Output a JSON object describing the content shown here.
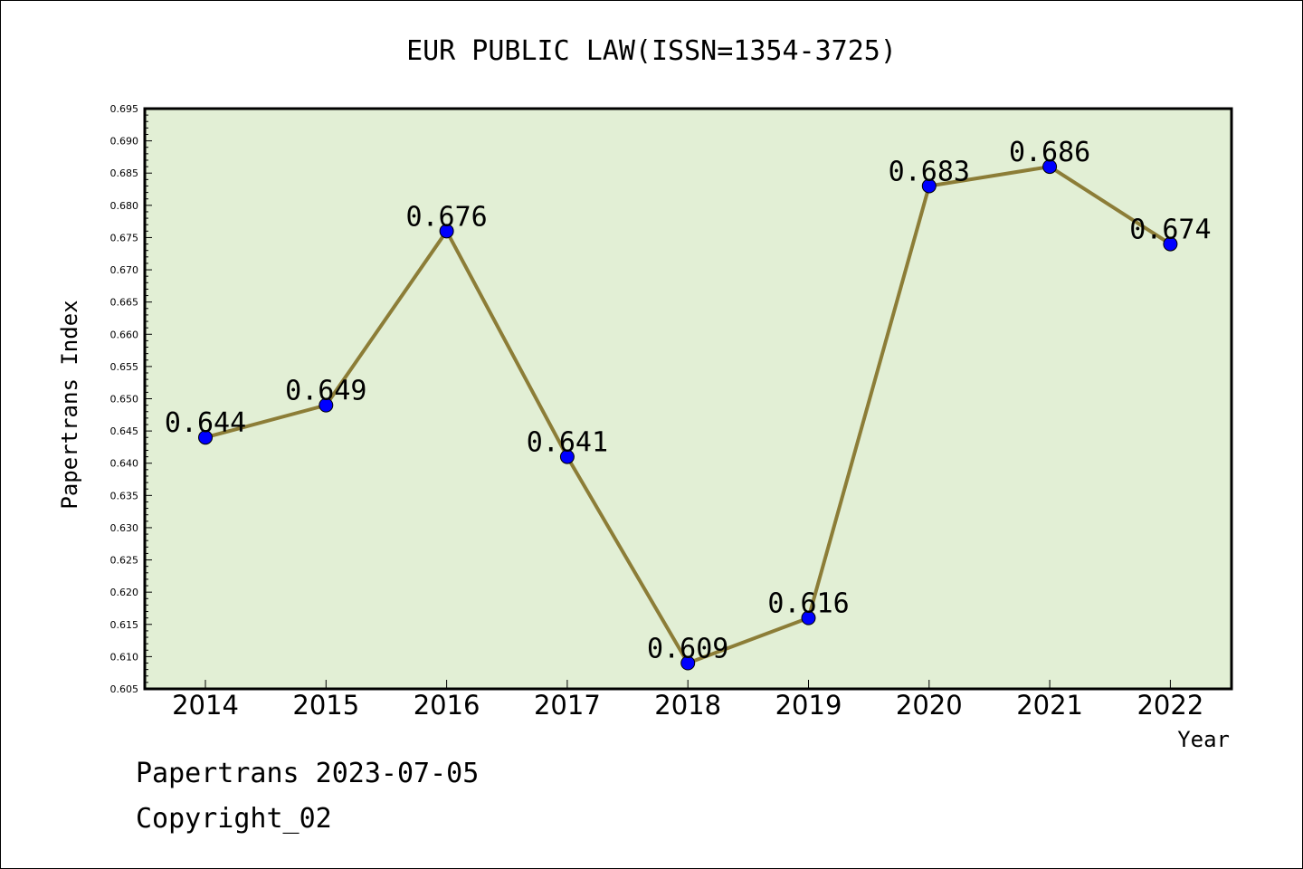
{
  "chart_data": {
    "type": "line",
    "title": "EUR PUBLIC LAW(ISSN=1354-3725)",
    "xlabel": "Year",
    "ylabel": "Papertrans Index",
    "categories": [
      "2014",
      "2015",
      "2016",
      "2017",
      "2018",
      "2019",
      "2020",
      "2021",
      "2022"
    ],
    "values": [
      0.644,
      0.649,
      0.676,
      0.641,
      0.609,
      0.616,
      0.683,
      0.686,
      0.674
    ],
    "data_labels": [
      "0.644",
      "0.649",
      "0.676",
      "0.641",
      "0.609",
      "0.616",
      "0.683",
      "0.686",
      "0.674"
    ],
    "ylim": [
      0.605,
      0.695
    ],
    "yticks": [
      "0.605",
      "0.610",
      "0.615",
      "0.620",
      "0.625",
      "0.630",
      "0.635",
      "0.640",
      "0.645",
      "0.650",
      "0.655",
      "0.660",
      "0.665",
      "0.670",
      "0.675",
      "0.680",
      "0.685",
      "0.690",
      "0.695"
    ],
    "grid": false,
    "legend": "none",
    "colors": {
      "plot_background": "#e2efd5",
      "line": "#8c7d37",
      "marker": "#0000ff"
    }
  },
  "footer": {
    "date_line": "Papertrans 2023-07-05",
    "copyright": "Copyright_02"
  }
}
